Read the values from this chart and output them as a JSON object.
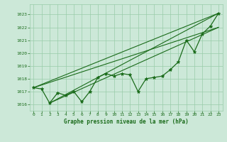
{
  "xlabel": "Graphe pression niveau de la mer (hPa)",
  "background_color": "#cce8d8",
  "grid_color": "#99ccaa",
  "line_color": "#1a6b1a",
  "marker_color": "#1a6b1a",
  "xlim": [
    -0.5,
    23.5
  ],
  "ylim": [
    1015.5,
    1023.8
  ],
  "yticks": [
    1016,
    1017,
    1018,
    1019,
    1020,
    1021,
    1022,
    1023
  ],
  "xticks": [
    0,
    1,
    2,
    3,
    4,
    5,
    6,
    7,
    8,
    9,
    10,
    11,
    12,
    13,
    14,
    15,
    16,
    17,
    18,
    19,
    20,
    21,
    22,
    23
  ],
  "hours": [
    0,
    1,
    2,
    3,
    4,
    5,
    6,
    7,
    8,
    9,
    10,
    11,
    12,
    13,
    14,
    15,
    16,
    17,
    18,
    19,
    20,
    21,
    22,
    23
  ],
  "pressure": [
    1017.3,
    1017.2,
    1016.1,
    1016.9,
    1016.7,
    1017.0,
    1016.2,
    1017.0,
    1018.1,
    1018.4,
    1018.2,
    1018.4,
    1018.3,
    1017.0,
    1018.0,
    1018.1,
    1018.2,
    1018.7,
    1019.3,
    1021.0,
    1020.1,
    1021.5,
    1022.1,
    1023.1
  ],
  "trend_lines": [
    [
      0,
      1017.3,
      23,
      1023.1
    ],
    [
      2,
      1016.1,
      23,
      1023.1
    ],
    [
      0,
      1017.3,
      23,
      1022.0
    ],
    [
      2,
      1016.1,
      23,
      1022.0
    ]
  ]
}
